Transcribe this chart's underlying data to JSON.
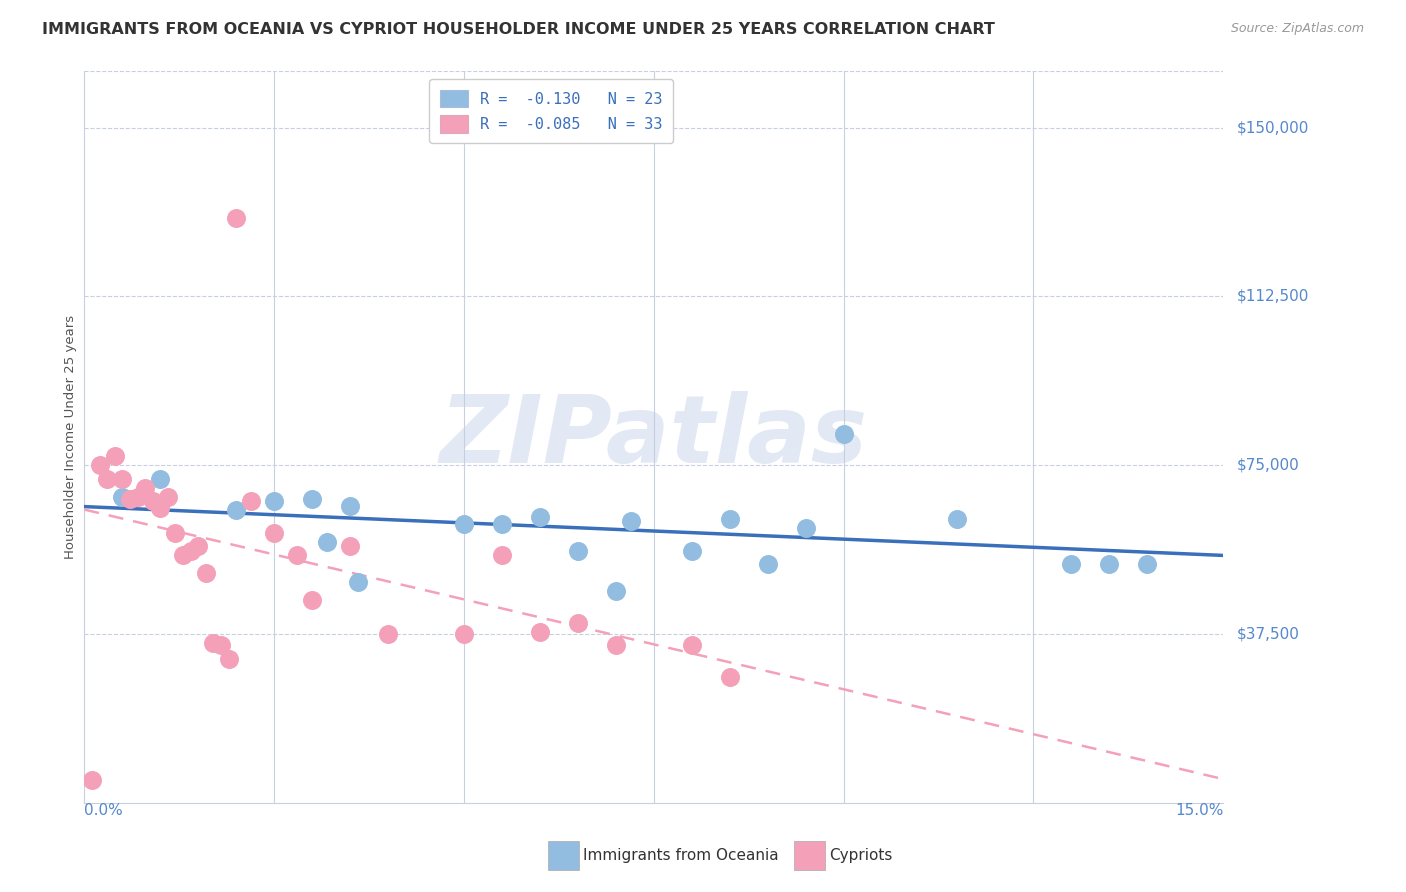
{
  "title": "IMMIGRANTS FROM OCEANIA VS CYPRIOT HOUSEHOLDER INCOME UNDER 25 YEARS CORRELATION CHART",
  "source": "Source: ZipAtlas.com",
  "ylabel": "Householder Income Under 25 years",
  "ytick_labels": [
    "$37,500",
    "$75,000",
    "$112,500",
    "$150,000"
  ],
  "ytick_values": [
    37500,
    75000,
    112500,
    150000
  ],
  "ylim": [
    0,
    162500
  ],
  "xlim": [
    0.0,
    0.15
  ],
  "xtick_positions": [
    0.0,
    0.025,
    0.05,
    0.075,
    0.1,
    0.125,
    0.15
  ],
  "legend_label1": "R =  -0.130   N = 23",
  "legend_label2": "R =  -0.085   N = 33",
  "legend_bottom1": "Immigrants from Oceania",
  "legend_bottom2": "Cypriots",
  "oceania_color": "#92bde0",
  "cypriot_color": "#f4a0b8",
  "oceania_scatter_color": "#92bde0",
  "cypriot_scatter_color": "#f4a0b8",
  "oceania_line_color": "#3a6fbc",
  "cypriot_line_color": "#f4a0b8",
  "background_color": "#ffffff",
  "grid_color": "#c8cfe0",
  "watermark_text": "ZIPatlas",
  "ytick_color": "#5588cc",
  "xtick_color": "#5588cc",
  "legend_text_color": "#3a6fbc",
  "title_color": "#333333",
  "source_color": "#999999",
  "ylabel_color": "#555555",
  "oceania_x": [
    0.005,
    0.01,
    0.02,
    0.025,
    0.03,
    0.032,
    0.035,
    0.036,
    0.05,
    0.055,
    0.06,
    0.065,
    0.07,
    0.072,
    0.08,
    0.085,
    0.09,
    0.095,
    0.1,
    0.115,
    0.13,
    0.135,
    0.14
  ],
  "oceania_y": [
    68000,
    72000,
    65000,
    67000,
    67500,
    58000,
    66000,
    49000,
    62000,
    62000,
    63500,
    56000,
    47000,
    62500,
    56000,
    63000,
    53000,
    61000,
    82000,
    63000,
    53000,
    53000,
    53000
  ],
  "cypriot_x": [
    0.001,
    0.002,
    0.003,
    0.004,
    0.005,
    0.006,
    0.007,
    0.008,
    0.009,
    0.01,
    0.011,
    0.012,
    0.013,
    0.014,
    0.015,
    0.016,
    0.017,
    0.018,
    0.019,
    0.02,
    0.022,
    0.025,
    0.028,
    0.03,
    0.035,
    0.04,
    0.05,
    0.055,
    0.06,
    0.065,
    0.07,
    0.08,
    0.085
  ],
  "cypriot_y": [
    5000,
    75000,
    72000,
    77000,
    72000,
    67500,
    68000,
    70000,
    67000,
    65500,
    68000,
    60000,
    55000,
    56000,
    57000,
    51000,
    35500,
    35000,
    32000,
    130000,
    67000,
    60000,
    55000,
    45000,
    57000,
    37500,
    37500,
    55000,
    38000,
    40000,
    35000,
    35000,
    28000
  ]
}
